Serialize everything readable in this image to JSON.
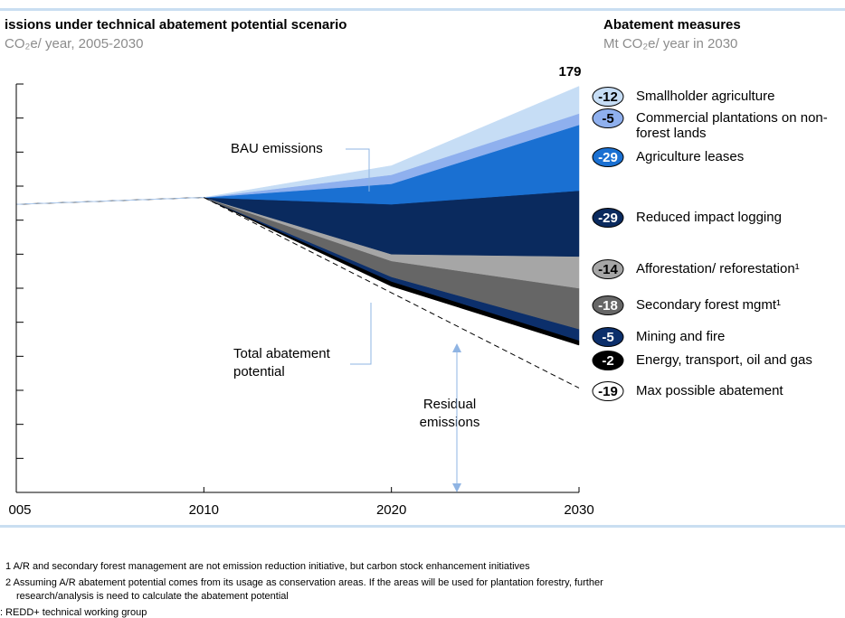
{
  "chart_data": {
    "type": "stacked-area",
    "title": "issions under technical abatement potential scenario",
    "subtitle": "CO₂e/ year, 2005-2030",
    "legend_title": "Abatement measures",
    "legend_subtitle": "Mt CO₂e/ year in 2030",
    "categories": [
      "005",
      "2010",
      "2020",
      "2030"
    ],
    "ylim": [
      0,
      180
    ],
    "yticks": [
      0,
      15,
      30,
      45,
      60,
      75,
      90,
      105,
      120,
      135,
      150,
      165,
      180
    ],
    "total": 179,
    "series": [
      {
        "color": "#ffffff",
        "values": [
          127,
          130,
          91,
          65
        ]
      },
      {
        "name": "Energy, transport, oil and gas",
        "color": "#000000",
        "abatement": -2,
        "values": [
          0,
          0,
          2,
          2
        ]
      },
      {
        "name": "Mining and fire",
        "color": "#0c2f6b",
        "abatement": -5,
        "values": [
          0,
          0,
          2,
          5
        ]
      },
      {
        "name": "Secondary forest mgmt¹",
        "color": "#666666",
        "abatement": -18,
        "values": [
          0,
          0,
          7,
          18
        ]
      },
      {
        "name": "Afforestation/ reforestation¹",
        "color": "#a6a6a6",
        "abatement": -14,
        "values": [
          0,
          0,
          3,
          14
        ]
      },
      {
        "name": "Reduced impact logging",
        "color": "#0a2a5e",
        "abatement": -29,
        "values": [
          0,
          0,
          22,
          29
        ]
      },
      {
        "name": "Agriculture leases",
        "color": "#1a70d2",
        "abatement": -29,
        "values": [
          0,
          0,
          9,
          29
        ]
      },
      {
        "name": "Commercial plantations on non-forest lands",
        "color": "#8fb0ee",
        "abatement": -5,
        "values": [
          0,
          0,
          4,
          5
        ]
      },
      {
        "name": "Smallholder agriculture",
        "color": "#c6ddf5",
        "abatement": -12,
        "values": [
          0,
          0,
          4,
          12
        ]
      }
    ],
    "max_line": {
      "name": "Max possible abatement",
      "abatement": -19,
      "values": [
        null,
        130,
        88,
        46
      ]
    },
    "annotations": {
      "bau": [
        "BAU emissions"
      ],
      "total": [
        "Total abatement",
        "potential"
      ],
      "residual": [
        "Residual",
        "emissions"
      ]
    },
    "footnotes": [
      "1 A/R and secondary forest management are not emission reduction initiative, but carbon stock enhancement initiatives",
      "2 Assuming A/R abatement potential comes from its usage as conservation areas. If the areas will be used for plantation forestry, further",
      "research/analysis is need to calculate the abatement potential",
      ": REDD+ technical working group"
    ]
  }
}
